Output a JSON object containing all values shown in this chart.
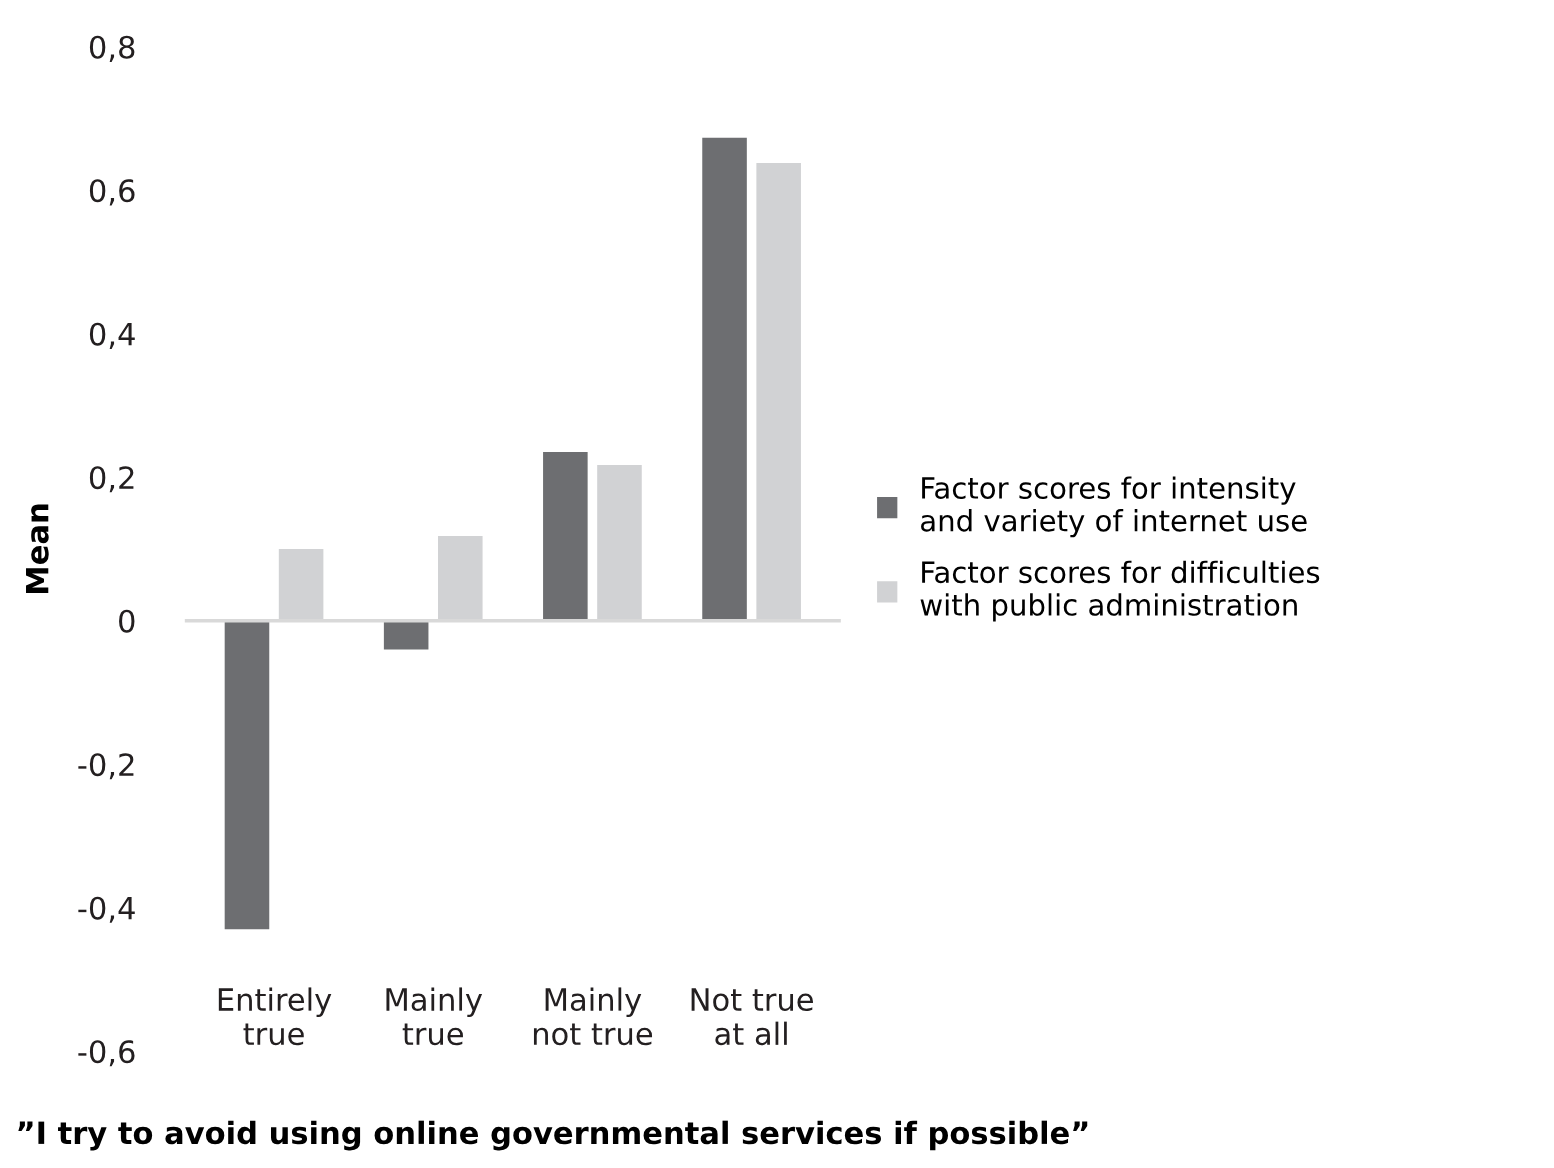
{
  "chart_data": {
    "type": "bar",
    "xlabel": "”I try to avoid using online governmental services if possible”",
    "ylabel": "Mean",
    "categories": [
      "Entirely\ntrue",
      "Mainly\ntrue",
      "Mainly\nnot true",
      "Not true\nat all"
    ],
    "series": [
      {
        "name": "Factor scores for intensity\nand variety of internet use",
        "color": "#6d6e71",
        "values": [
          -0.43,
          -0.04,
          0.235,
          0.673
        ]
      },
      {
        "name": "Factor scores for difficulties\nwith public administration",
        "color": "#d1d2d4",
        "values": [
          0.1,
          0.118,
          0.217,
          0.638
        ]
      }
    ],
    "ylim": [
      -0.6,
      0.8
    ],
    "yticks": [
      {
        "value": -0.6,
        "label": "-0,6"
      },
      {
        "value": -0.4,
        "label": "-0,4"
      },
      {
        "value": -0.2,
        "label": "-0,2"
      },
      {
        "value": 0,
        "label": "0"
      },
      {
        "value": 0.2,
        "label": "0,2"
      },
      {
        "value": 0.4,
        "label": "0,4"
      },
      {
        "value": 0.6,
        "label": "0,6"
      },
      {
        "value": 0.8,
        "label": "0,8"
      }
    ],
    "legend": "right"
  }
}
